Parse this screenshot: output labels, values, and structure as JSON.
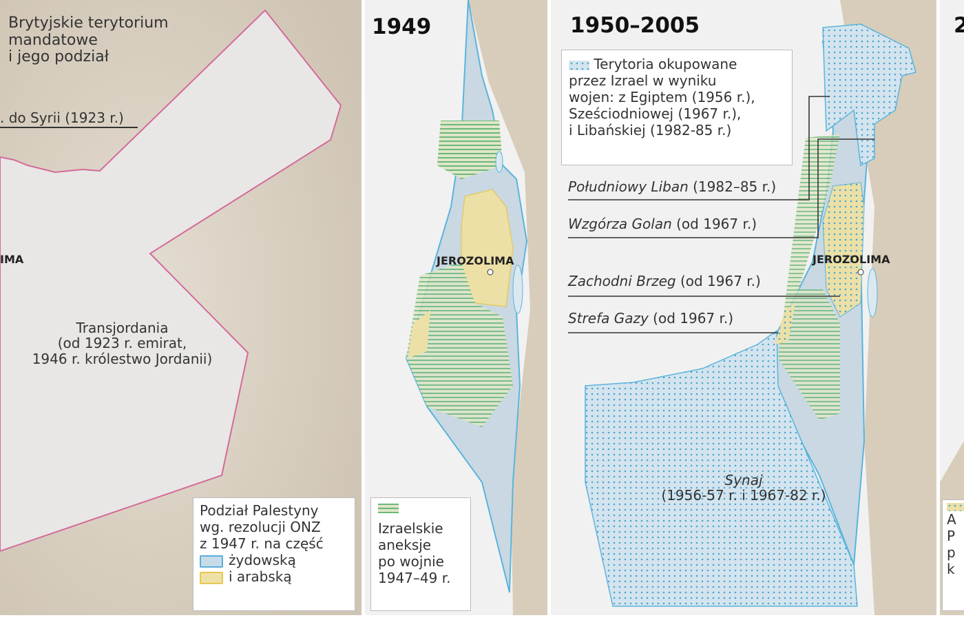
{
  "panel1": {
    "title": "Brytyjskie terytorium mandatowe i jego podział",
    "title_lines": [
      "Brytyjskie terytorium",
      "mandatowe",
      "i jego podział"
    ],
    "syria_note": ". do Syrii (1923 r.)",
    "city": "IMA",
    "transjordan_lines": [
      "Transjordania",
      "(od 1923 r. emirat,",
      "1946 r. królestwo Jordanii)"
    ],
    "legend": {
      "lines": [
        "Podział Palestyny",
        "wg. rezolucji ONZ",
        "z 1947 r. na część"
      ],
      "items": [
        {
          "label": "żydowską",
          "color": "#c8dbe8",
          "border": "#5aaedb"
        },
        {
          "label": "i arabską",
          "color": "#efe0a8",
          "border": "#e6c850"
        }
      ]
    },
    "border_color": "#d46a9a"
  },
  "panel2": {
    "title": "1949",
    "city": "JEROZOLIMA",
    "legend": {
      "lines": [
        "Izraelskie",
        "aneksje",
        "po wojnie",
        "1947–49 r."
      ],
      "swatch": "horizontal-hatch-green-yellow"
    }
  },
  "panel3": {
    "title": "1950–2005",
    "city": "JEROZOLIMA",
    "legend": {
      "lines": [
        "Terytoria okupowane",
        "przez Izrael w wyniku",
        "wojen: z Egiptem (1956 r.),",
        "Sześciodniowej (1967 r.),",
        "i Libańskiej (1982-85 r.)"
      ],
      "swatch": "dotted-blue-green"
    },
    "callouts": [
      {
        "name": "Południowy Liban",
        "date": " (1982–85 r.)"
      },
      {
        "name": "Wzgórza Golan",
        "date": " (od 1967 r.)"
      },
      {
        "name": "Zachodni Brzeg",
        "date": " (od 1967 r.)"
      },
      {
        "name": "Strefa Gazy",
        "date": " (od 1967 r.)"
      }
    ],
    "sinai": {
      "name": "Synaj",
      "date": "(1956-57 r. i 1967-82 r.)"
    }
  },
  "panel4": {
    "title": "2",
    "legend_lines": [
      "A",
      "P",
      "p",
      "k"
    ]
  },
  "colors": {
    "land": "#d9cfbf",
    "sea": "#f2f2f2",
    "israel": "#c9d8e2",
    "israel_border": "#5ab4dc",
    "arab": "#ece0a6",
    "hatch": "#6cb87a"
  }
}
